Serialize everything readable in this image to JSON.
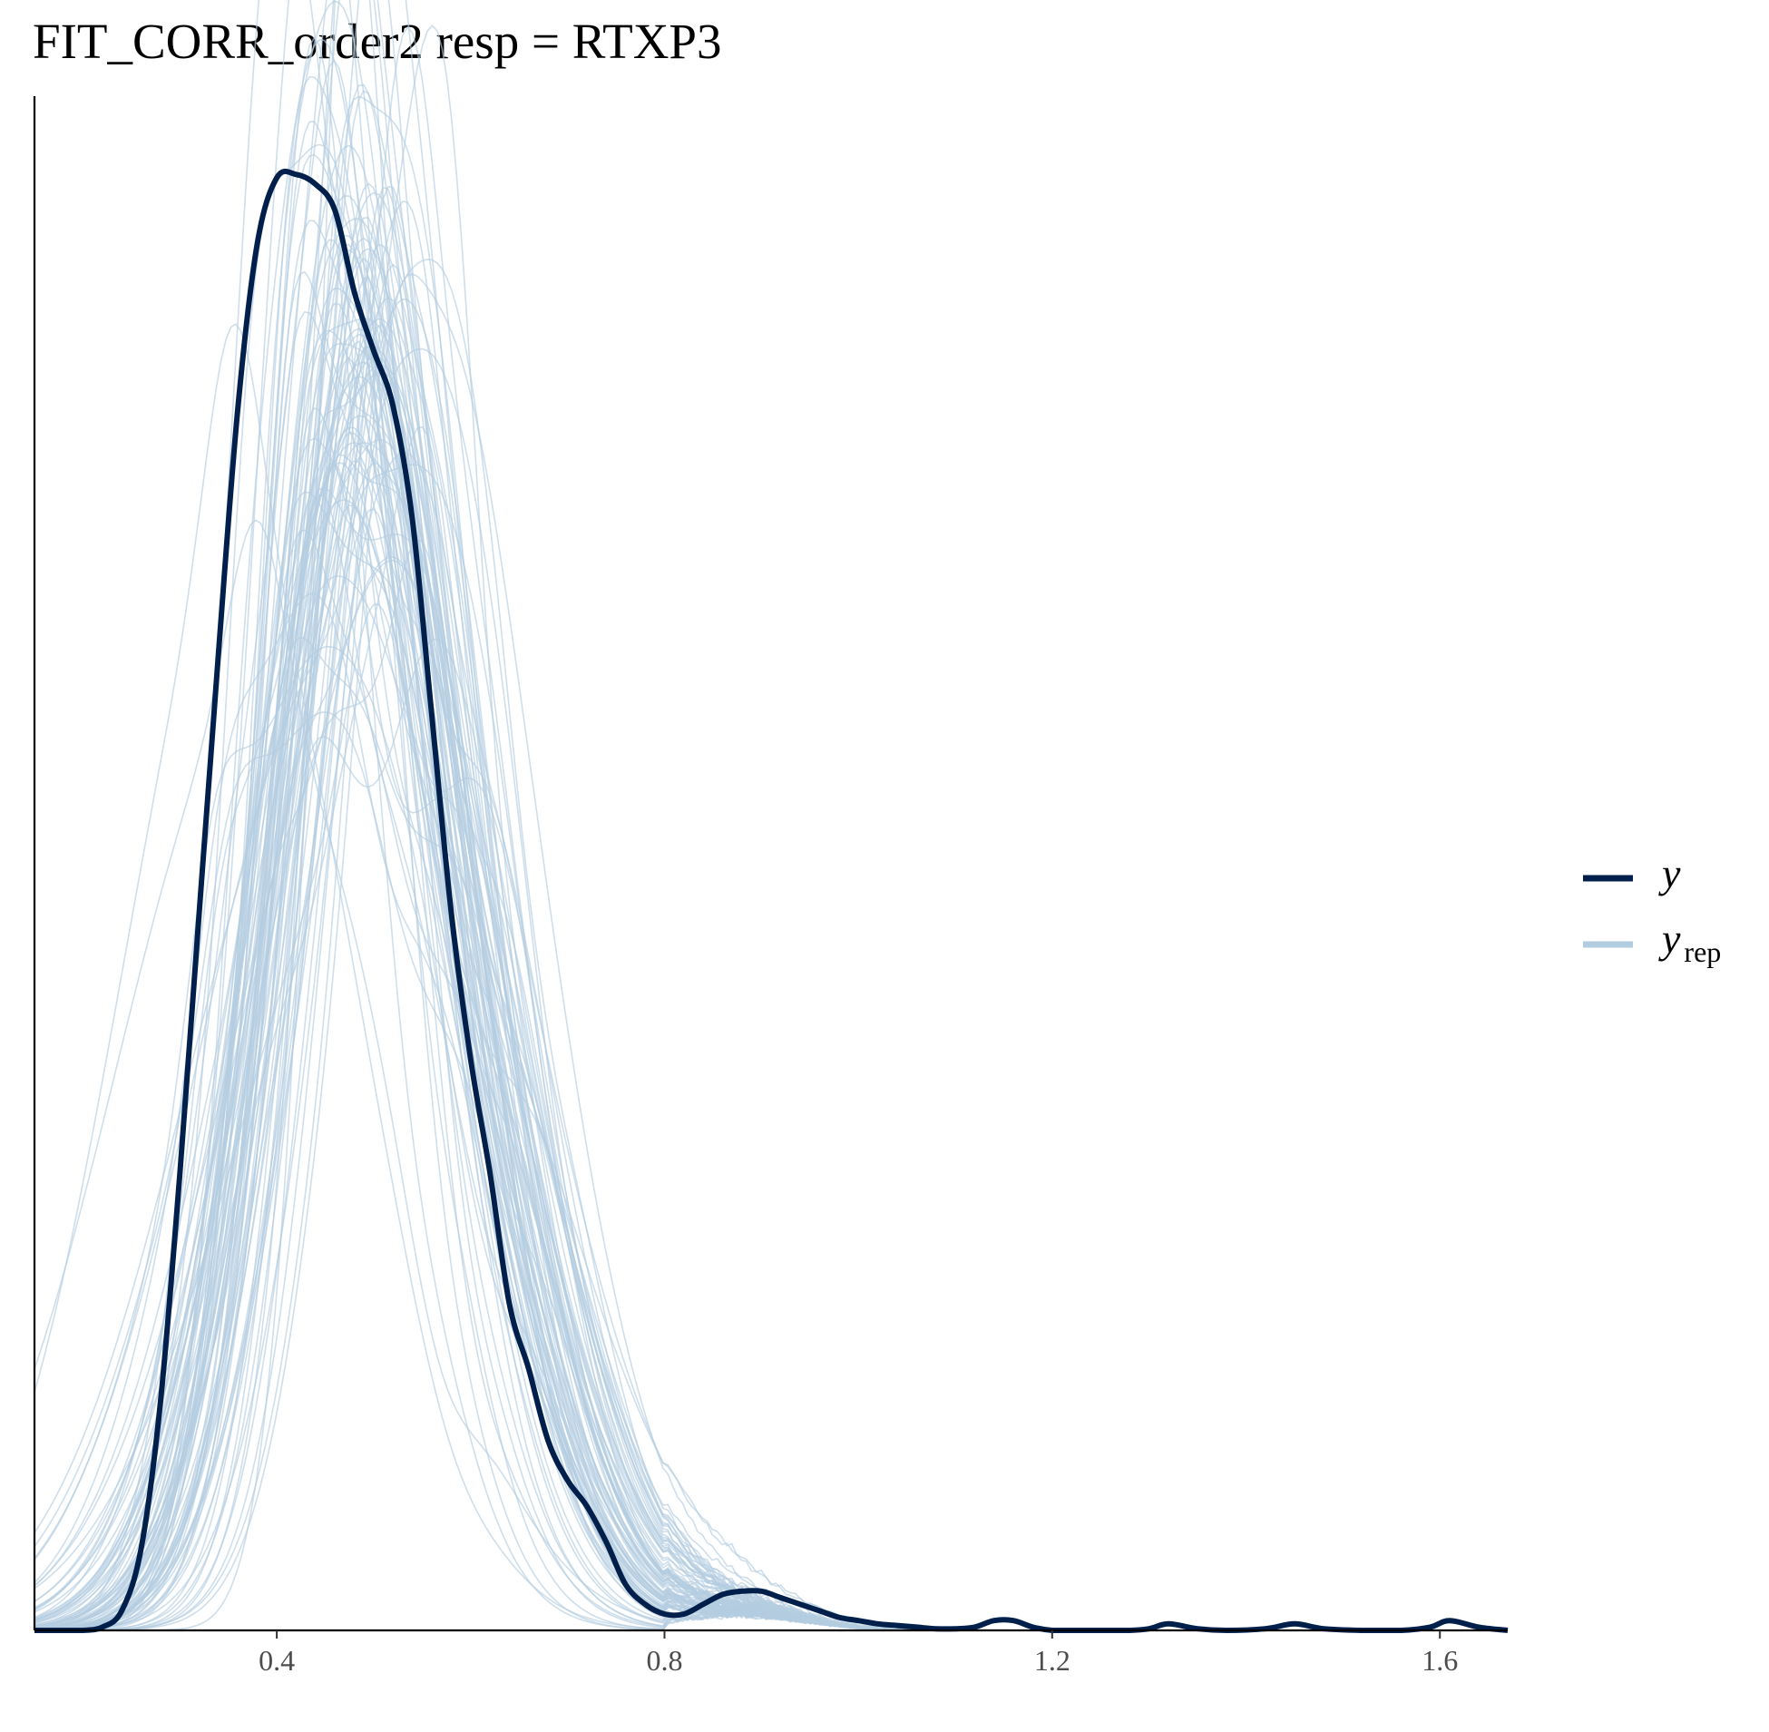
{
  "chart_data": {
    "type": "line",
    "title": "FIT_CORR_order2 resp = RTXP3",
    "xlabel": "",
    "ylabel": "",
    "xlim": [
      0.15,
      1.67
    ],
    "ylim": [
      0,
      4.7
    ],
    "x_ticks": [
      0.4,
      0.8,
      1.2,
      1.6
    ],
    "x_tick_labels": [
      "0.4",
      "0.8",
      "1.2",
      "1.6"
    ],
    "y_axis_ticks_shown": false,
    "grid": false,
    "legend_position": "right",
    "legend": [
      {
        "key": "y",
        "label": "y",
        "sub": "",
        "color": "#011f4b"
      },
      {
        "key": "yrep",
        "label": "y",
        "sub": "rep",
        "color": "#b3cde0"
      }
    ],
    "colors": {
      "y": "#011f4b",
      "yrep": "#b3cde0"
    },
    "series": [
      {
        "key": "y",
        "x": [
          0.15,
          0.18,
          0.2,
          0.22,
          0.24,
          0.26,
          0.28,
          0.3,
          0.32,
          0.34,
          0.36,
          0.38,
          0.4,
          0.42,
          0.44,
          0.46,
          0.48,
          0.5,
          0.52,
          0.54,
          0.56,
          0.58,
          0.6,
          0.62,
          0.64,
          0.66,
          0.68,
          0.7,
          0.72,
          0.74,
          0.76,
          0.78,
          0.8,
          0.82,
          0.84,
          0.86,
          0.88,
          0.9,
          0.92,
          0.94,
          0.96,
          0.98,
          1.0,
          1.02,
          1.04,
          1.06,
          1.08,
          1.1,
          1.12,
          1.14,
          1.16,
          1.18,
          1.2,
          1.22,
          1.25,
          1.28,
          1.3,
          1.32,
          1.35,
          1.38,
          1.42,
          1.45,
          1.48,
          1.52,
          1.56,
          1.59,
          1.61,
          1.64,
          1.67
        ],
        "y": [
          0.0,
          0.0,
          0.0,
          0.01,
          0.06,
          0.25,
          0.7,
          1.4,
          2.2,
          3.0,
          3.75,
          4.25,
          4.45,
          4.46,
          4.43,
          4.35,
          4.1,
          3.92,
          3.75,
          3.4,
          2.8,
          2.2,
          1.75,
          1.4,
          1.0,
          0.8,
          0.58,
          0.46,
          0.38,
          0.27,
          0.14,
          0.08,
          0.05,
          0.05,
          0.08,
          0.11,
          0.12,
          0.12,
          0.1,
          0.08,
          0.06,
          0.04,
          0.03,
          0.02,
          0.015,
          0.01,
          0.005,
          0.005,
          0.01,
          0.03,
          0.03,
          0.01,
          0.0,
          0.0,
          0.0,
          0.0,
          0.005,
          0.02,
          0.005,
          0.0,
          0.005,
          0.02,
          0.005,
          0.0,
          0.0,
          0.01,
          0.03,
          0.01,
          0.0
        ]
      }
    ]
  },
  "simulation": {
    "yrep_count": 100,
    "yrep_mean": 0.49,
    "yrep_mean_sd": 0.025,
    "yrep_sd": 0.115,
    "yrep_sd_sd": 0.015,
    "yrep_shape": 1.1
  }
}
